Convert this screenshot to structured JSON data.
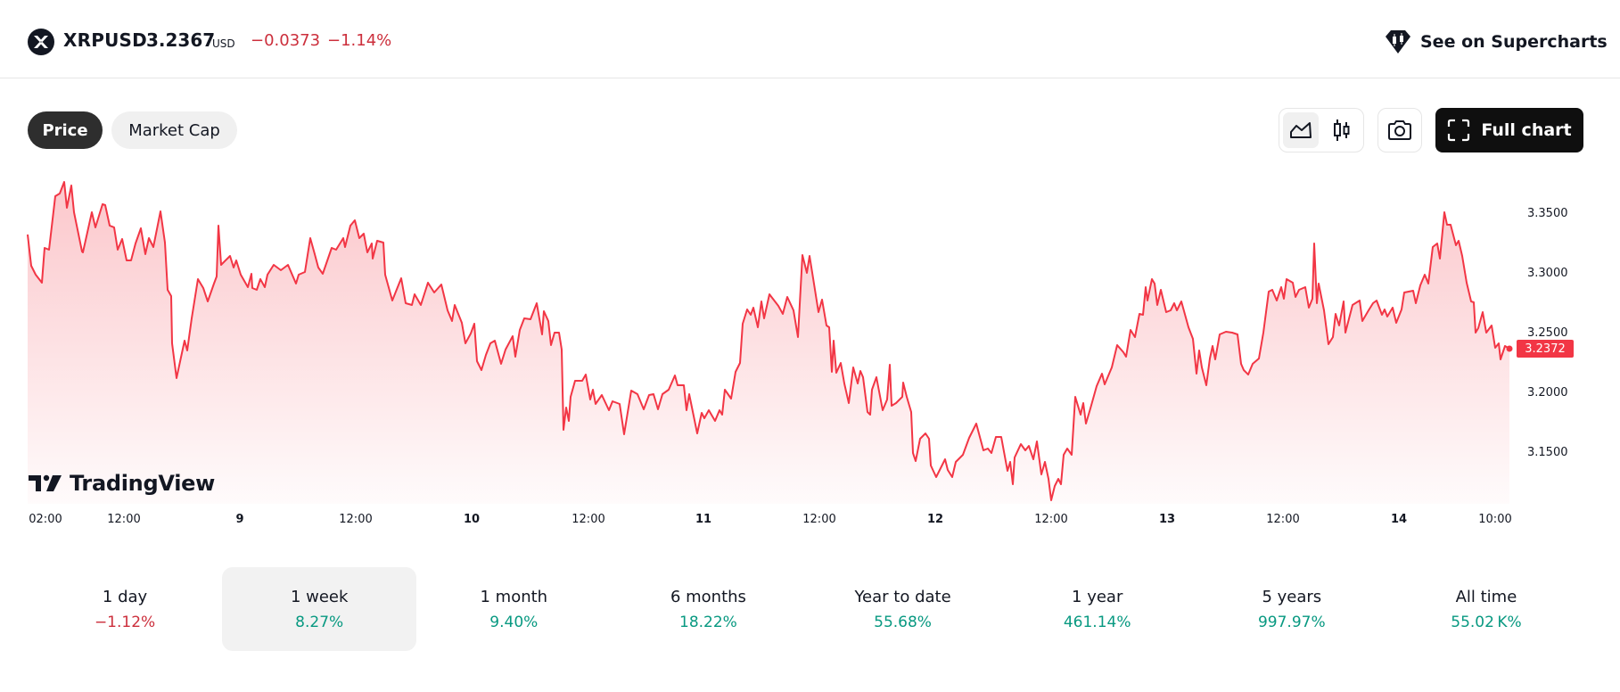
{
  "header": {
    "symbol": "XRPUSD",
    "price": "3.2367",
    "currency": "USD",
    "change": "−0.0373",
    "change_percent": "−1.14%",
    "supercharts_label": "See on Supercharts",
    "icons": {
      "symbol": "xrp-logo-icon",
      "supercharts": "supercharts-diamond-icon"
    }
  },
  "toolbar": {
    "tabs": [
      {
        "label": "Price",
        "active": true
      },
      {
        "label": "Market Cap",
        "active": false
      }
    ],
    "chart_types": [
      {
        "icon": "area-chart-icon",
        "active": true
      },
      {
        "icon": "candlestick-chart-icon",
        "active": false
      }
    ],
    "snapshot_icon": "camera-icon",
    "full_chart_label": "Full chart",
    "full_chart_icon": "fullscreen-icon"
  },
  "chart": {
    "line_color": "#F23645",
    "last_price_label": "3.2372",
    "watermark": "TradingView",
    "y_ticks": [
      "3.3500",
      "3.3000",
      "3.2500",
      "3.2000",
      "3.1500"
    ],
    "x_ticks": [
      {
        "label": "02:00",
        "bold": false
      },
      {
        "label": "12:00",
        "bold": false
      },
      {
        "label": "9",
        "bold": true
      },
      {
        "label": "12:00",
        "bold": false
      },
      {
        "label": "10",
        "bold": true
      },
      {
        "label": "12:00",
        "bold": false
      },
      {
        "label": "11",
        "bold": true
      },
      {
        "label": "12:00",
        "bold": false
      },
      {
        "label": "12",
        "bold": true
      },
      {
        "label": "12:00",
        "bold": false
      },
      {
        "label": "13",
        "bold": true
      },
      {
        "label": "12:00",
        "bold": false
      },
      {
        "label": "14",
        "bold": true
      },
      {
        "label": "10:00",
        "bold": false
      }
    ]
  },
  "periods": [
    {
      "label": "1 day",
      "value": "−1.12%",
      "sign": "neg",
      "active": false
    },
    {
      "label": "1 week",
      "value": "8.27%",
      "sign": "pos",
      "active": true
    },
    {
      "label": "1 month",
      "value": "9.40%",
      "sign": "pos",
      "active": false
    },
    {
      "label": "6 months",
      "value": "18.22%",
      "sign": "pos",
      "active": false
    },
    {
      "label": "Year to date",
      "value": "55.68%",
      "sign": "pos",
      "active": false
    },
    {
      "label": "1 year",
      "value": "461.14%",
      "sign": "pos",
      "active": false
    },
    {
      "label": "5 years",
      "value": "997.97%",
      "sign": "pos",
      "active": false
    },
    {
      "label": "All time",
      "value": "55.02 K%",
      "sign": "pos",
      "active": false
    }
  ],
  "chart_data": {
    "type": "area",
    "title": "XRPUSD",
    "xlabel": "",
    "ylabel": "USD",
    "ylim": [
      3.11,
      3.38
    ],
    "grid": false,
    "legend": "none",
    "x_tick_labels": [
      "02:00",
      "12:00",
      "9",
      "12:00",
      "10",
      "12:00",
      "11",
      "12:00",
      "12",
      "12:00",
      "13",
      "12:00",
      "14",
      "10:00"
    ],
    "y_tick_labels": [
      "3.1500",
      "3.2000",
      "3.2500",
      "3.3000",
      "3.3500"
    ],
    "last_value": 3.2372,
    "series": [
      {
        "name": "XRPUSD",
        "color": "#F23645",
        "x": [
          "8 02:00",
          "8 06:00",
          "8 08:00",
          "8 12:00",
          "8 16:00",
          "8 19:00",
          "8 22:00",
          "9 00:00",
          "9 04:00",
          "9 08:00",
          "9 12:00",
          "9 16:00",
          "9 20:00",
          "10 00:00",
          "10 04:00",
          "10 08:00",
          "10 10:00",
          "10 14:00",
          "10 18:00",
          "10 22:00",
          "11 04:00",
          "11 10:00",
          "11 14:00",
          "11 18:00",
          "12 00:00",
          "12 06:00",
          "12 10:00",
          "12 14:00",
          "12 18:00",
          "13 00:00",
          "13 06:00",
          "13 12:00",
          "13 16:00",
          "13 20:00",
          "14 02:00",
          "14 06:00",
          "14 10:00"
        ],
        "values": [
          3.333,
          3.29,
          3.373,
          3.325,
          3.313,
          3.318,
          3.274,
          3.336,
          3.296,
          3.305,
          3.337,
          3.297,
          3.242,
          3.273,
          3.242,
          3.267,
          3.17,
          3.217,
          3.196,
          3.209,
          3.204,
          3.277,
          3.316,
          3.236,
          3.202,
          3.144,
          3.163,
          3.122,
          3.195,
          3.298,
          3.251,
          3.289,
          3.236,
          3.265,
          3.264,
          3.348,
          3.237
        ]
      }
    ]
  }
}
